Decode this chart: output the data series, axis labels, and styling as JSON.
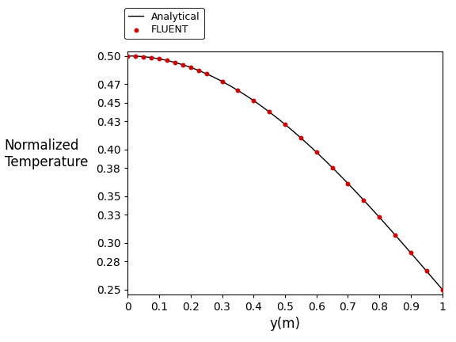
{
  "xlabel": "y(m)",
  "ylabel": "Normalized\nTemperature",
  "xlim": [
    0,
    1.0
  ],
  "ylim": [
    0.245,
    0.505
  ],
  "yticks": [
    0.25,
    0.28,
    0.3,
    0.33,
    0.35,
    0.38,
    0.4,
    0.43,
    0.45,
    0.47,
    0.5
  ],
  "xticks": [
    0,
    0.1,
    0.2,
    0.3,
    0.4,
    0.5,
    0.6,
    0.7,
    0.8,
    0.9,
    1.0
  ],
  "fluent_y": [
    0.0,
    0.025,
    0.05,
    0.075,
    0.1,
    0.125,
    0.15,
    0.175,
    0.2,
    0.225,
    0.25,
    0.3,
    0.35,
    0.4,
    0.45,
    0.5,
    0.55,
    0.6,
    0.65,
    0.7,
    0.75,
    0.8,
    0.85,
    0.9,
    0.95,
    1.0
  ],
  "erf_shift": 0.5,
  "erf_scale": 0.6,
  "T_min": 0.25,
  "T_range": 0.25,
  "line_color": "#000000",
  "dot_color": "#cc0000",
  "dot_size": 18,
  "legend_line_label": "Analytical",
  "legend_dot_label": "FLUENT",
  "background_color": "#ffffff",
  "fig_width": 5.76,
  "fig_height": 4.32,
  "dpi": 100
}
